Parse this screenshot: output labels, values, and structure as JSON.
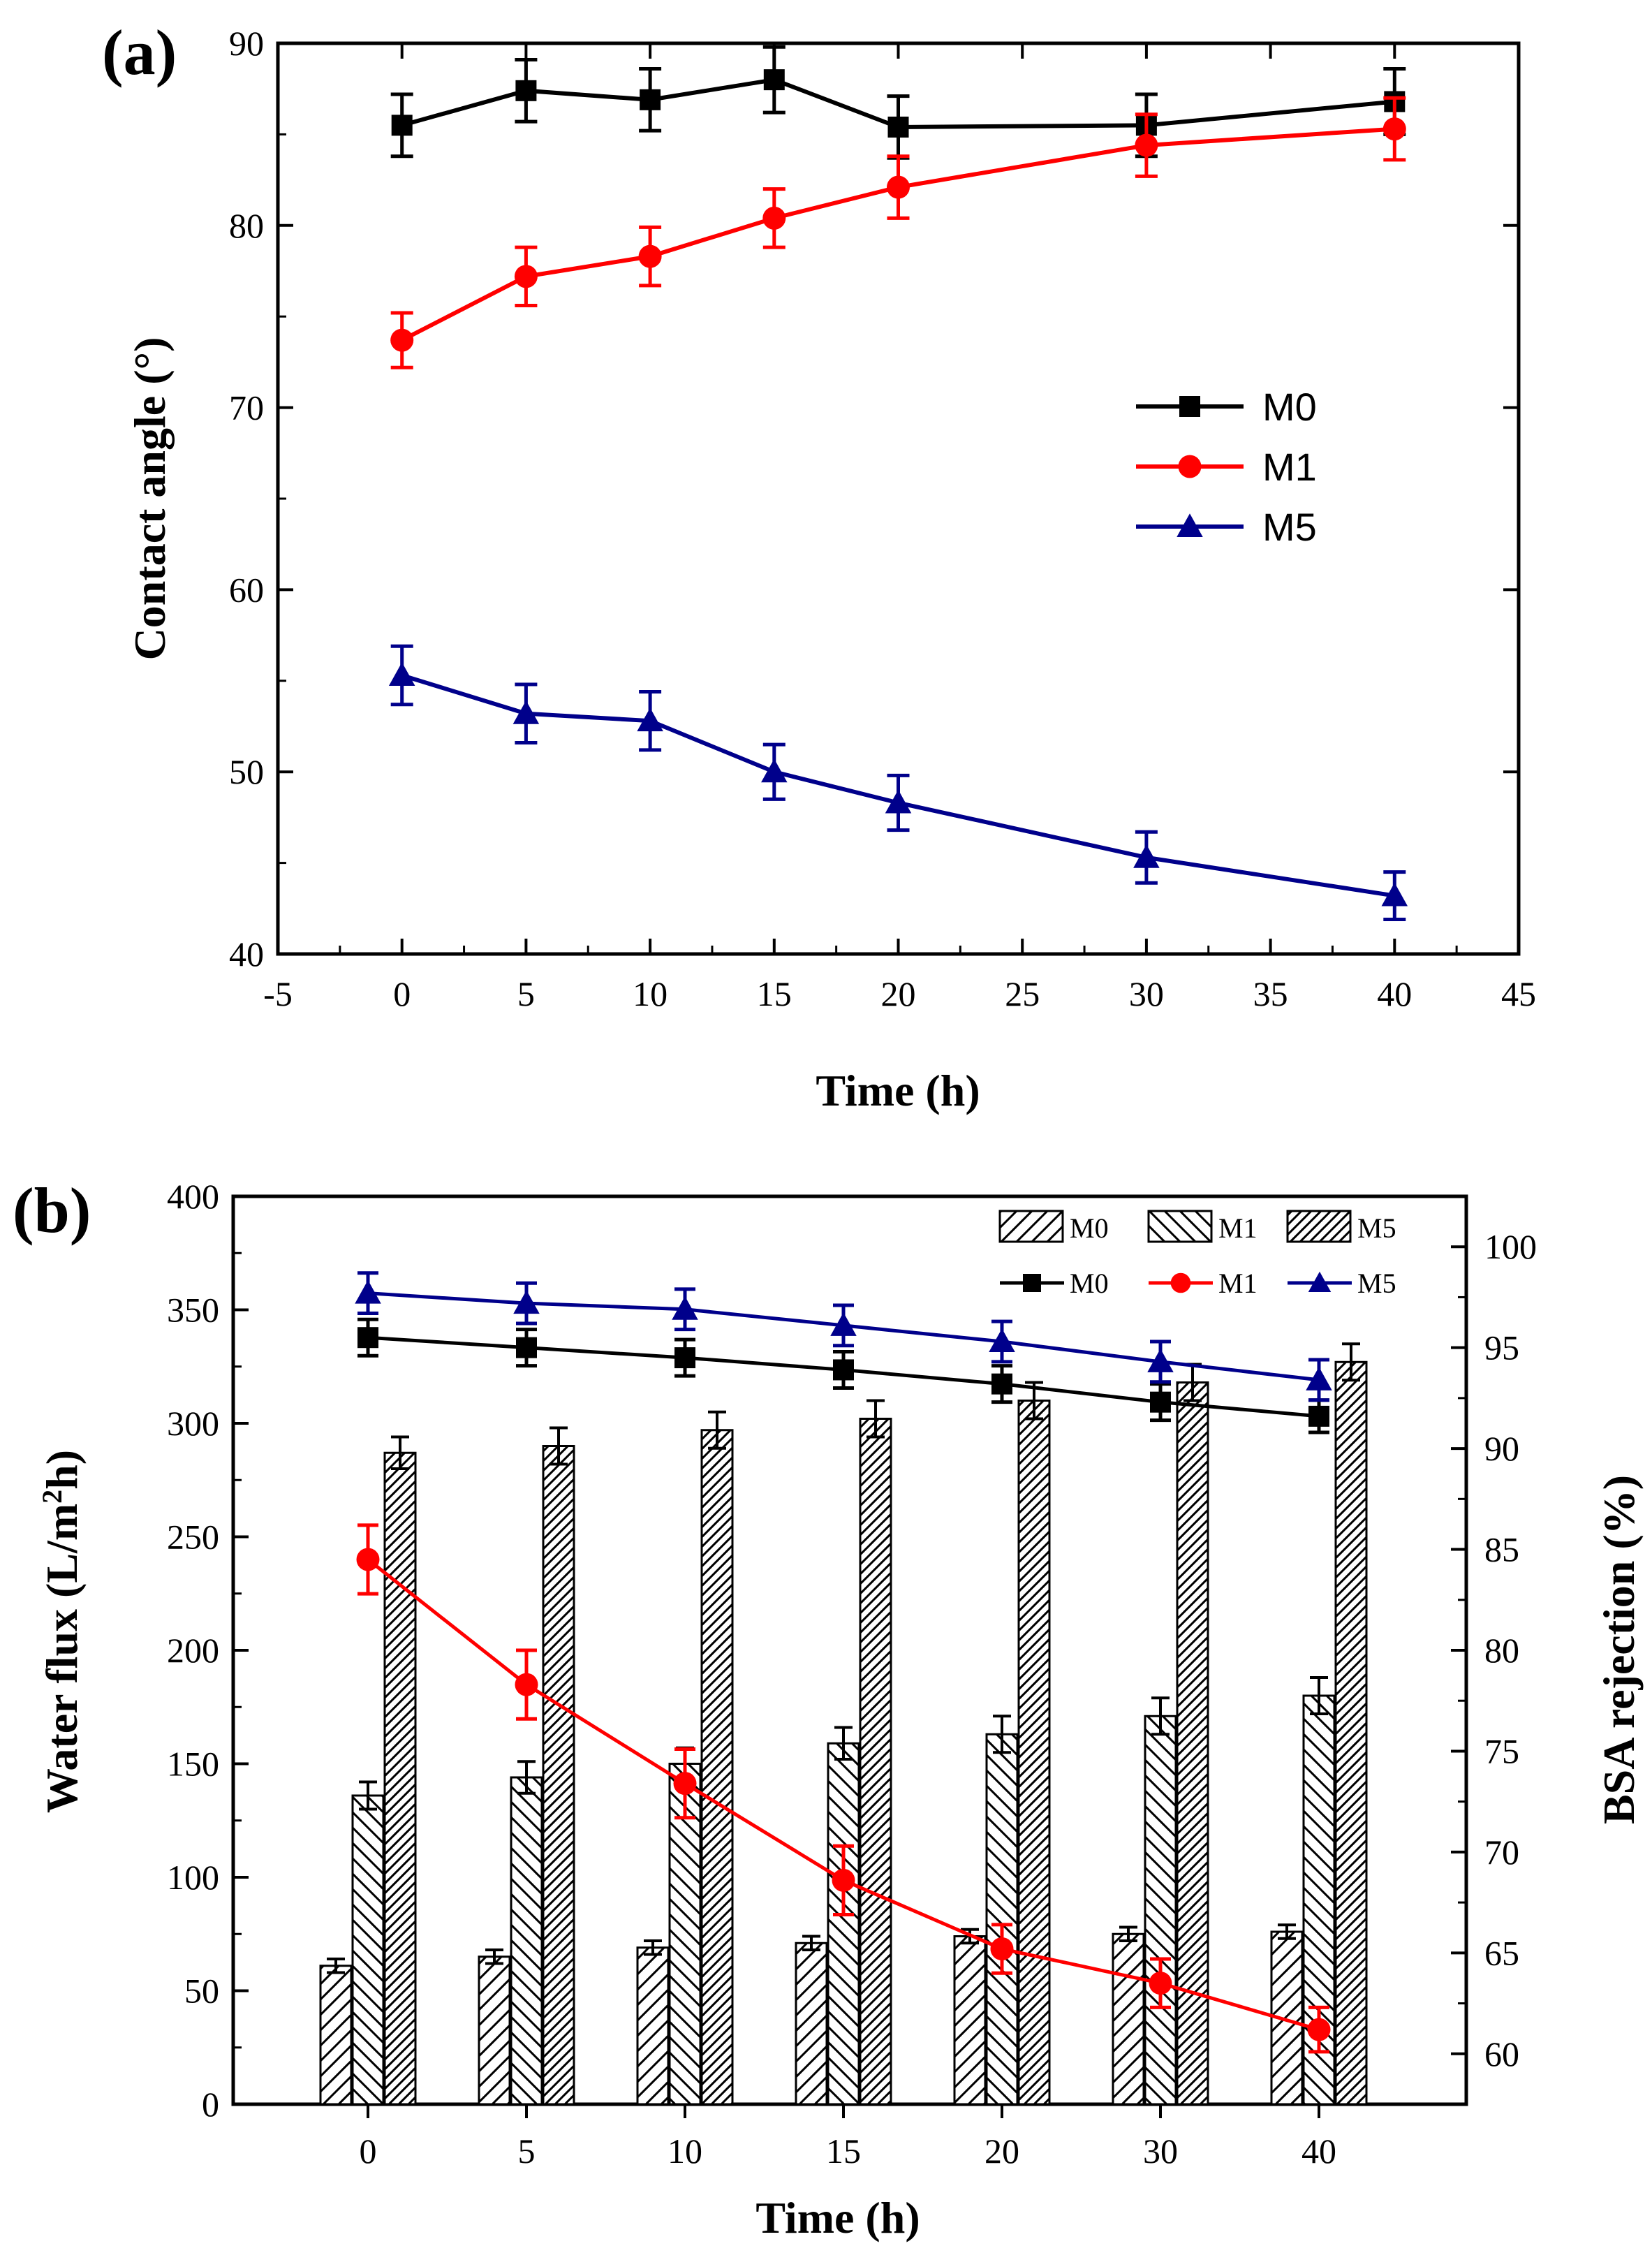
{
  "chart_data": [
    {
      "panel_label": "(a)",
      "type": "line",
      "xlabel": "Time (h)",
      "ylabel": "Contact angle (°)",
      "xlim": [
        -5,
        45
      ],
      "ylim": [
        40,
        90
      ],
      "x_ticks": [
        "-5",
        "0",
        "5",
        "10",
        "15",
        "20",
        "25",
        "30",
        "35",
        "40",
        "45"
      ],
      "y_ticks": [
        "40",
        "50",
        "60",
        "70",
        "80",
        "90"
      ],
      "x": [
        0,
        5,
        10,
        15,
        20,
        30,
        40
      ],
      "series": [
        {
          "name": "M0",
          "marker": "square",
          "color": "#000000",
          "values": [
            85.5,
            87.4,
            86.9,
            88.0,
            85.4,
            85.5,
            86.8
          ],
          "errors": [
            1.7,
            1.7,
            1.7,
            1.8,
            1.7,
            1.7,
            1.8
          ]
        },
        {
          "name": "M1",
          "marker": "circle",
          "color": "#ff0000",
          "values": [
            73.7,
            77.2,
            78.3,
            80.4,
            82.1,
            84.4,
            85.3
          ],
          "errors": [
            1.5,
            1.6,
            1.6,
            1.6,
            1.7,
            1.7,
            1.7
          ]
        },
        {
          "name": "M5",
          "marker": "triangle",
          "color": "#00008b",
          "values": [
            55.3,
            53.2,
            52.8,
            50.0,
            48.3,
            45.3,
            43.2
          ],
          "errors": [
            1.6,
            1.6,
            1.6,
            1.5,
            1.5,
            1.4,
            1.3
          ]
        }
      ],
      "legend": [
        "M0",
        "M1",
        "M5"
      ],
      "legend_position": "center-right"
    },
    {
      "panel_label": "(b)",
      "type": "bar+line",
      "xlabel": "Time (h)",
      "ylabel_left": "Water flux (L/m",
      "ylabel_left_sup": "2",
      "ylabel_left_tail": "h)",
      "ylabel_right": "BSA rejection (%)",
      "categories": [
        "0",
        "5",
        "10",
        "15",
        "20",
        "30",
        "40"
      ],
      "ylim_left": [
        0,
        400
      ],
      "ylim_right": [
        57.5,
        102.5
      ],
      "y_ticks_left": [
        "0",
        "50",
        "100",
        "150",
        "200",
        "250",
        "300",
        "350",
        "400"
      ],
      "y_ticks_right": [
        "60",
        "65",
        "70",
        "75",
        "80",
        "85",
        "90",
        "95",
        "100"
      ],
      "bar_series": [
        {
          "name": "M0",
          "hatch": "//",
          "values": [
            61,
            65,
            69,
            71,
            74,
            75,
            76
          ],
          "errors": [
            3,
            3,
            3,
            3,
            3,
            3,
            3
          ]
        },
        {
          "name": "M1",
          "hatch": "\\\\",
          "values": [
            136,
            144,
            150,
            159,
            163,
            171,
            180
          ],
          "errors": [
            6,
            7,
            7,
            7,
            8,
            8,
            8
          ]
        },
        {
          "name": "M5",
          "hatch": "///",
          "values": [
            287,
            290,
            297,
            302,
            310,
            318,
            327
          ],
          "errors": [
            7,
            8,
            8,
            8,
            8,
            8,
            8
          ]
        }
      ],
      "line_series": [
        {
          "name": "M0",
          "marker": "square",
          "color": "#000000",
          "values": [
            95.5,
            95.0,
            94.5,
            93.9,
            93.2,
            92.3,
            91.6
          ],
          "errors": [
            0.9,
            0.9,
            0.9,
            0.9,
            0.9,
            0.9,
            0.8
          ]
        },
        {
          "name": "M1",
          "marker": "circle",
          "color": "#ff0000",
          "values": [
            84.5,
            78.3,
            73.4,
            68.6,
            65.2,
            63.5,
            61.2
          ],
          "errors": [
            1.7,
            1.7,
            1.7,
            1.7,
            1.2,
            1.2,
            1.1
          ]
        },
        {
          "name": "M5",
          "marker": "triangle",
          "color": "#00008b",
          "values": [
            97.7,
            97.2,
            96.9,
            96.1,
            95.3,
            94.3,
            93.4
          ],
          "errors": [
            1.0,
            1.0,
            1.0,
            1.0,
            1.0,
            1.0,
            1.0
          ]
        }
      ],
      "legend_bars": [
        "M0",
        "M1",
        "M5"
      ],
      "legend_lines": [
        "M0",
        "M1",
        "M5"
      ],
      "legend_position": "top-right"
    }
  ]
}
